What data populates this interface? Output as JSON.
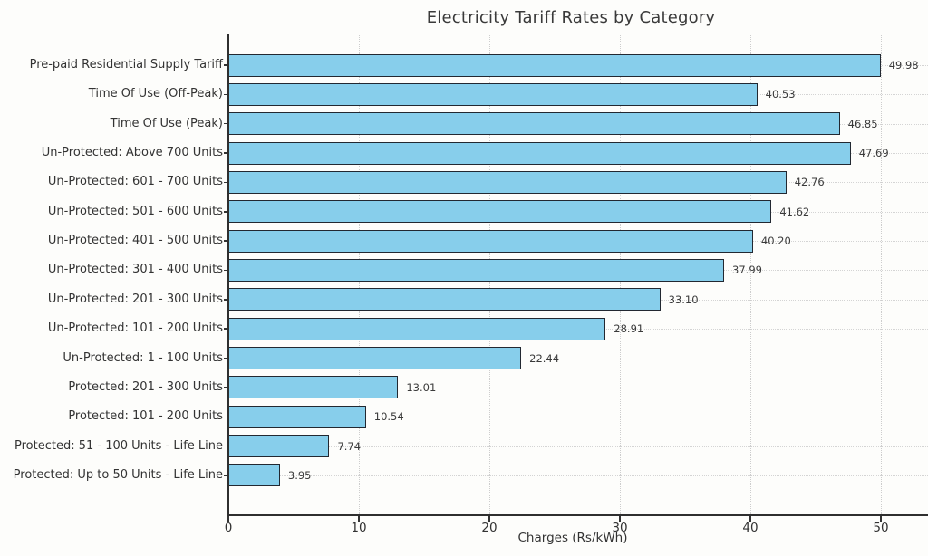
{
  "chart_data": {
    "type": "bar",
    "orientation": "horizontal",
    "title": "Electricity Tariff Rates by Category",
    "xlabel": "Charges (Rs/kWh)",
    "ylabel": "",
    "categories": [
      "Pre-paid Residential Supply Tariff",
      "Time Of Use (Off-Peak)",
      "Time Of Use (Peak)",
      "Un-Protected: Above 700 Units",
      "Un-Protected: 601 - 700 Units",
      "Un-Protected: 501 - 600 Units",
      "Un-Protected: 401 - 500 Units",
      "Un-Protected: 301 - 400 Units",
      "Un-Protected: 201 - 300 Units",
      "Un-Protected: 101 - 200 Units",
      "Un-Protected: 1 - 100 Units",
      "Protected: 201 - 300 Units",
      "Protected: 101 - 200 Units",
      "Protected: 51 - 100 Units - Life Line",
      "Protected: Up to 50 Units - Life Line"
    ],
    "values": [
      49.98,
      40.53,
      46.85,
      47.69,
      42.76,
      41.62,
      40.2,
      37.99,
      33.1,
      28.91,
      22.44,
      13.01,
      10.54,
      7.74,
      3.95
    ],
    "value_labels": [
      "49.98",
      "40.53",
      "46.85",
      "47.69",
      "42.76",
      "41.62",
      "40.20",
      "37.99",
      "33.10",
      "28.91",
      "22.44",
      "13.01",
      "10.54",
      "7.74",
      "3.95"
    ],
    "xticks": [
      "0",
      "10",
      "20",
      "30",
      "40",
      "50"
    ],
    "xtick_values": [
      0,
      10,
      20,
      30,
      40,
      50
    ],
    "xlim": [
      0,
      53.6
    ],
    "grid": true,
    "legend": "none",
    "bar_color": "#87CEEB",
    "bar_edge_color": "#222831",
    "text_color": "#333333",
    "grid_color": "#d0d0d0"
  }
}
